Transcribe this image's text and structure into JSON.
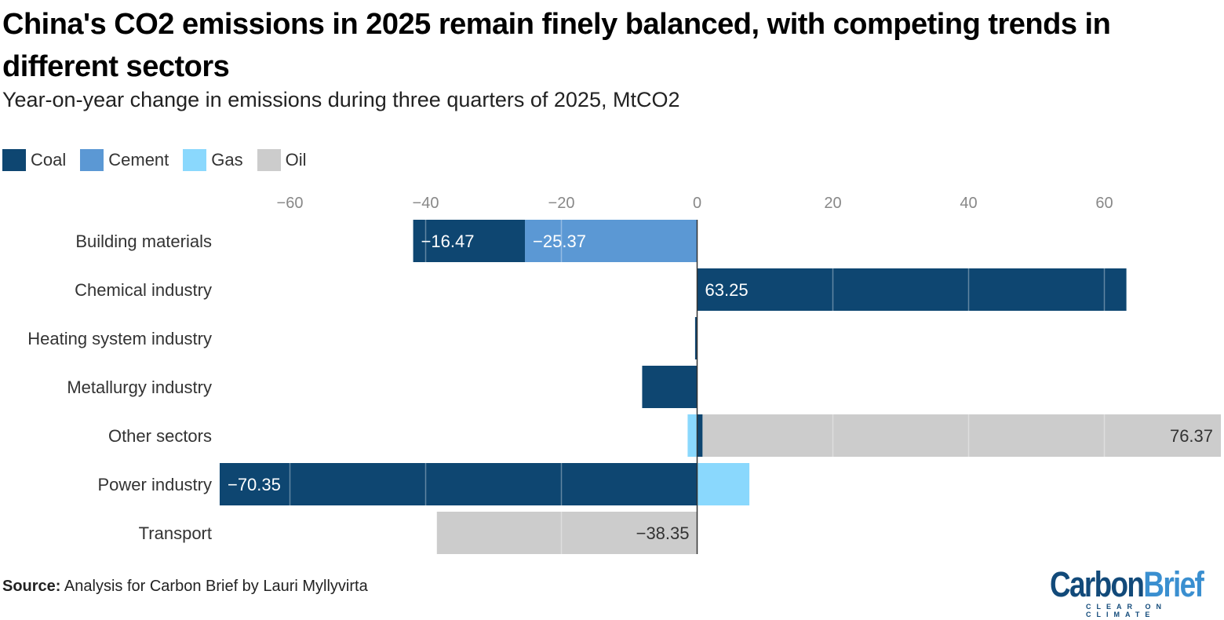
{
  "title": "China's CO2 emissions in 2025 remain finely balanced, with competing trends in different sectors",
  "subtitle": "Year-on-year change in emissions during three quarters of 2025, MtCO2",
  "source_label": "Source:",
  "source_text": " Analysis for Carbon Brief by Lauri Myllyvirta",
  "logo": {
    "part1": "Carbon",
    "part2": "Brief",
    "tagline": "CLEAR ON CLIMATE"
  },
  "chart_data": {
    "type": "bar",
    "orientation": "horizontal",
    "stacked": true,
    "categories": [
      "Building materials",
      "Chemical industry",
      "Heating system industry",
      "Metallurgy industry",
      "Other sectors",
      "Power industry",
      "Transport"
    ],
    "series": [
      {
        "name": "Coal",
        "color": "#0e4671",
        "values": [
          -16.47,
          63.25,
          -0.3,
          -8.1,
          0.8,
          -70.35,
          0
        ]
      },
      {
        "name": "Cement",
        "color": "#5b98d4",
        "values": [
          -25.37,
          0,
          0,
          0,
          0,
          0,
          0
        ]
      },
      {
        "name": "Gas",
        "color": "#8ad8fd",
        "values": [
          0,
          0,
          0,
          0,
          -1.4,
          7.7,
          0
        ]
      },
      {
        "name": "Oil",
        "color": "#cccccc",
        "values": [
          0,
          0,
          0,
          0,
          76.37,
          0,
          -38.35
        ]
      }
    ],
    "data_labels": [
      {
        "category": "Building materials",
        "series": "Coal",
        "text": "−16.47"
      },
      {
        "category": "Building materials",
        "series": "Cement",
        "text": "−25.37"
      },
      {
        "category": "Chemical industry",
        "series": "Coal",
        "text": "63.25"
      },
      {
        "category": "Other sectors",
        "series": "Oil",
        "text": "76.37"
      },
      {
        "category": "Power industry",
        "series": "Coal",
        "text": "−70.35"
      },
      {
        "category": "Transport",
        "series": "Oil",
        "text": "−38.35"
      }
    ],
    "xticks": [
      "−60",
      "−40",
      "−20",
      "0",
      "20",
      "40",
      "60"
    ],
    "xtick_values": [
      -60,
      -40,
      -20,
      0,
      20,
      40,
      60
    ],
    "xlim": [
      -70.35,
      77
    ],
    "legend_position": "top-left",
    "grid": true
  }
}
